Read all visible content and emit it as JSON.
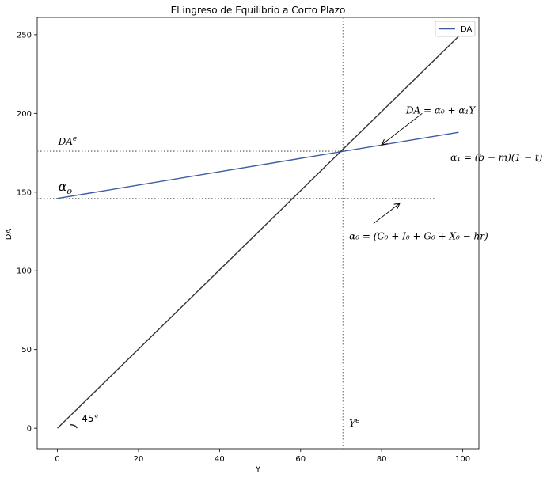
{
  "chart_data": {
    "type": "line",
    "title": "El ingreso de Equilibrio a Corto Plazo",
    "xlabel": "Y",
    "ylabel": "DA",
    "xlim": [
      -5,
      104
    ],
    "ylim": [
      -13,
      261
    ],
    "x_ticks": [
      0,
      20,
      40,
      60,
      80,
      100
    ],
    "y_ticks": [
      0,
      50,
      100,
      150,
      200,
      250
    ],
    "grid": false,
    "legend": {
      "position": "top-right",
      "entries": [
        "DA"
      ]
    },
    "series": [
      {
        "name": "DA",
        "color": "#3b5ba5",
        "x": [
          0,
          99
        ],
        "y": [
          146,
          188
        ]
      },
      {
        "color": "#333333",
        "x": [
          0,
          99
        ],
        "y": [
          0,
          249
        ]
      }
    ],
    "reference_lines": [
      {
        "orientation": "horizontal",
        "y": 176,
        "x_end": 70.5,
        "style": "dotted",
        "color": "#888888"
      },
      {
        "orientation": "horizontal",
        "y": 146,
        "x_end": 93,
        "style": "dotted",
        "color": "#888888"
      },
      {
        "orientation": "vertical",
        "x": 70.5,
        "style": "dotted",
        "color": "#888888"
      }
    ],
    "annotations": [
      {
        "id": "dae",
        "text": "DA",
        "sup": "e",
        "x": 0.2,
        "y": 180
      },
      {
        "id": "alpha_o",
        "text": "α",
        "sub": "o",
        "x": 0.2,
        "y": 151
      },
      {
        "id": "ye",
        "text": "Y",
        "sup": "e",
        "x": 72,
        "y": 1
      },
      {
        "id": "angle",
        "text": "45°",
        "x": 6,
        "y": 4
      },
      {
        "id": "da_eq",
        "text": "DA = α₀ + α₁Y",
        "x": 86,
        "y": 200
      },
      {
        "id": "alpha1",
        "text": "α₁ = (b − m)(1 − t)",
        "x": 97,
        "y": 170
      },
      {
        "id": "alpha0",
        "text": "α₀ = (C₀ + I₀ + G₀ + X₀ − hr)",
        "x": 72,
        "y": 120
      }
    ],
    "arrows": [
      {
        "from": [
          90,
          200
        ],
        "to": [
          80,
          180
        ]
      },
      {
        "from": [
          78,
          130
        ],
        "to": [
          84.5,
          143
        ]
      }
    ],
    "colors": {
      "da_line": "#3b5ba5",
      "diagonal": "#333333",
      "guide": "#888888",
      "axis": "#000000"
    }
  }
}
